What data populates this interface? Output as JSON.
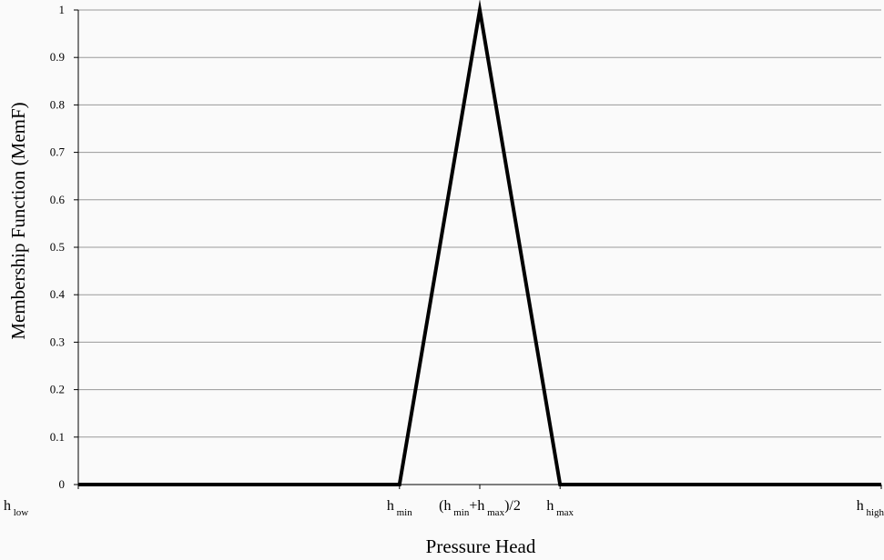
{
  "chart_data": {
    "type": "line",
    "xlabel": "Pressure Head",
    "ylabel": "Membership Function (MemF)",
    "ylim": [
      0,
      1
    ],
    "yticks": [
      "0",
      "0.1",
      "0.2",
      "0.3",
      "0.4",
      "0.5",
      "0.6",
      "0.7",
      "0.8",
      "0.9",
      "1"
    ],
    "grid": "horizontal",
    "x_tick_labels": [
      {
        "base": "h",
        "sub": "low",
        "pos": 0
      },
      {
        "base": "h",
        "sub": "min",
        "pos": 2
      },
      {
        "base": "(h",
        "sub": "min",
        "mid": "+h",
        "sub2": "max",
        "tail": ")/2",
        "pos": 2.5
      },
      {
        "base": "h",
        "sub": "max",
        "pos": 3
      },
      {
        "base": "h",
        "sub": "high",
        "pos": 5
      }
    ],
    "xlim": [
      0,
      5
    ],
    "series": [
      {
        "x": [
          0,
          2,
          2.5,
          3,
          5
        ],
        "y": [
          0,
          0,
          1,
          0,
          0
        ],
        "color": "#000000"
      }
    ]
  }
}
